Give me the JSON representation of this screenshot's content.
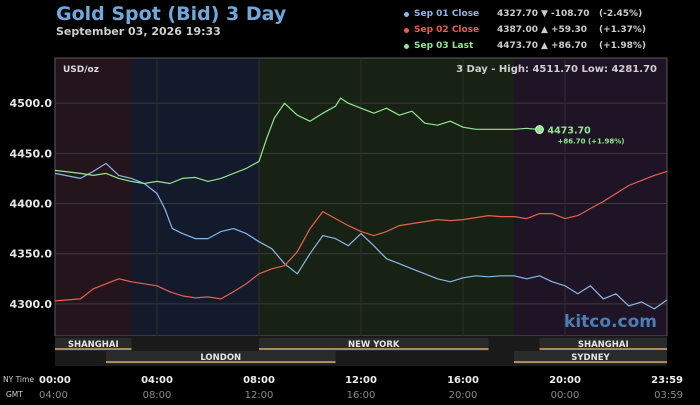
{
  "title": "Gold Spot (Bid) 3 Day",
  "subtitle": "September 03, 2026 19:33",
  "legend": [
    {
      "name": "Sep 01 Close",
      "value": "4327.70",
      "arrow": "▼",
      "change": "-108.70",
      "pct": "(-2.45%)",
      "color": "#8ab8e6"
    },
    {
      "name": "Sep 02 Close",
      "value": "4387.00",
      "arrow": "▲",
      "change": "+59.30",
      "pct": "(+1.37%)",
      "color": "#e8604c"
    },
    {
      "name": "Sep 03 Last",
      "value": "4473.70",
      "arrow": "▲",
      "change": "+86.70",
      "pct": "(+1.98%)",
      "color": "#8fe88f"
    }
  ],
  "chart": {
    "unit_label": "USD/oz",
    "range_text": "3 Day - High: 4511.70  Low: 4281.70",
    "last_label": "4473.70",
    "last_change": "+86.70 (+1.98%)",
    "watermark": "kitco.com",
    "row_labels": [
      "NY Time",
      "GMT"
    ]
  },
  "chart_data": {
    "type": "line",
    "ylabel": "USD/oz",
    "ylim": [
      4268,
      4545
    ],
    "y_ticks": [
      4300.0,
      4350.0,
      4400.0,
      4450.0,
      4500.0
    ],
    "x_ticks_ny": [
      "00:00",
      "04:00",
      "08:00",
      "12:00",
      "16:00",
      "20:00",
      "23:59"
    ],
    "x_ticks_gmt": [
      "04:00",
      "08:00",
      "12:00",
      "16:00",
      "20:00",
      "00:00",
      "03:59"
    ],
    "sessions": [
      "SHANGHAI",
      "LONDON",
      "NEW YORK",
      "SHANGHAI",
      "SYDNEY"
    ],
    "grid": true,
    "series": [
      {
        "name": "Sep 01",
        "color": "#8ab8e6",
        "points": [
          [
            0,
            4430
          ],
          [
            1,
            4425
          ],
          [
            1.5,
            4432
          ],
          [
            2,
            4440
          ],
          [
            2.5,
            4428
          ],
          [
            3,
            4425
          ],
          [
            3.5,
            4420
          ],
          [
            4,
            4410
          ],
          [
            4.3,
            4395
          ],
          [
            4.6,
            4375
          ],
          [
            5,
            4370
          ],
          [
            5.5,
            4365
          ],
          [
            6,
            4365
          ],
          [
            6.5,
            4372
          ],
          [
            7,
            4375
          ],
          [
            7.5,
            4370
          ],
          [
            8,
            4362
          ],
          [
            8.5,
            4355
          ],
          [
            9,
            4340
          ],
          [
            9.5,
            4330
          ],
          [
            10,
            4350
          ],
          [
            10.5,
            4368
          ],
          [
            11,
            4365
          ],
          [
            11.5,
            4358
          ],
          [
            12,
            4370
          ],
          [
            12.5,
            4358
          ],
          [
            13,
            4345
          ],
          [
            13.5,
            4340
          ],
          [
            14,
            4335
          ],
          [
            14.5,
            4330
          ],
          [
            15,
            4325
          ],
          [
            15.5,
            4322
          ],
          [
            16,
            4326
          ],
          [
            16.5,
            4328
          ],
          [
            17,
            4327
          ],
          [
            17.5,
            4328
          ],
          [
            18,
            4328
          ],
          [
            18.5,
            4325
          ],
          [
            19,
            4328
          ],
          [
            19.5,
            4322
          ],
          [
            20,
            4318
          ],
          [
            20.5,
            4310
          ],
          [
            21,
            4318
          ],
          [
            21.5,
            4305
          ],
          [
            22,
            4310
          ],
          [
            22.5,
            4298
          ],
          [
            23,
            4302
          ],
          [
            23.5,
            4295
          ],
          [
            24,
            4304
          ]
        ]
      },
      {
        "name": "Sep 02",
        "color": "#e8604c",
        "points": [
          [
            0,
            4303
          ],
          [
            1,
            4305
          ],
          [
            1.5,
            4315
          ],
          [
            2,
            4320
          ],
          [
            2.5,
            4325
          ],
          [
            3,
            4322
          ],
          [
            3.5,
            4320
          ],
          [
            4,
            4318
          ],
          [
            4.5,
            4312
          ],
          [
            5,
            4308
          ],
          [
            5.5,
            4306
          ],
          [
            6,
            4307
          ],
          [
            6.5,
            4305
          ],
          [
            7,
            4312
          ],
          [
            7.5,
            4320
          ],
          [
            8,
            4330
          ],
          [
            8.5,
            4335
          ],
          [
            9,
            4338
          ],
          [
            9.5,
            4352
          ],
          [
            10,
            4375
          ],
          [
            10.5,
            4392
          ],
          [
            11,
            4385
          ],
          [
            11.5,
            4378
          ],
          [
            12,
            4372
          ],
          [
            12.5,
            4368
          ],
          [
            13,
            4372
          ],
          [
            13.5,
            4378
          ],
          [
            14,
            4380
          ],
          [
            14.5,
            4382
          ],
          [
            15,
            4384
          ],
          [
            15.5,
            4383
          ],
          [
            16,
            4384
          ],
          [
            16.5,
            4386
          ],
          [
            17,
            4388
          ],
          [
            17.5,
            4387
          ],
          [
            18,
            4387
          ],
          [
            18.5,
            4385
          ],
          [
            19,
            4390
          ],
          [
            19.5,
            4390
          ],
          [
            20,
            4385
          ],
          [
            20.5,
            4388
          ],
          [
            21,
            4395
          ],
          [
            21.5,
            4402
          ],
          [
            22,
            4410
          ],
          [
            22.5,
            4418
          ],
          [
            23,
            4423
          ],
          [
            23.5,
            4428
          ],
          [
            24,
            4432
          ]
        ]
      },
      {
        "name": "Sep 03",
        "color": "#8fe88f",
        "points": [
          [
            0,
            4433
          ],
          [
            1,
            4430
          ],
          [
            1.5,
            4428
          ],
          [
            2,
            4430
          ],
          [
            2.5,
            4425
          ],
          [
            3,
            4422
          ],
          [
            3.5,
            4420
          ],
          [
            4,
            4422
          ],
          [
            4.5,
            4420
          ],
          [
            5,
            4425
          ],
          [
            5.5,
            4426
          ],
          [
            6,
            4422
          ],
          [
            6.5,
            4425
          ],
          [
            7,
            4430
          ],
          [
            7.5,
            4435
          ],
          [
            8,
            4442
          ],
          [
            8.3,
            4465
          ],
          [
            8.6,
            4485
          ],
          [
            9,
            4500
          ],
          [
            9.5,
            4488
          ],
          [
            10,
            4482
          ],
          [
            10.5,
            4490
          ],
          [
            11,
            4497
          ],
          [
            11.2,
            4505
          ],
          [
            11.5,
            4500
          ],
          [
            12,
            4495
          ],
          [
            12.5,
            4490
          ],
          [
            13,
            4495
          ],
          [
            13.5,
            4488
          ],
          [
            14,
            4492
          ],
          [
            14.5,
            4480
          ],
          [
            15,
            4478
          ],
          [
            15.5,
            4482
          ],
          [
            16,
            4476
          ],
          [
            16.5,
            4474
          ],
          [
            17,
            4474
          ],
          [
            17.5,
            4474
          ],
          [
            18,
            4474
          ],
          [
            18.5,
            4475
          ],
          [
            19,
            4473.7
          ]
        ]
      }
    ]
  }
}
